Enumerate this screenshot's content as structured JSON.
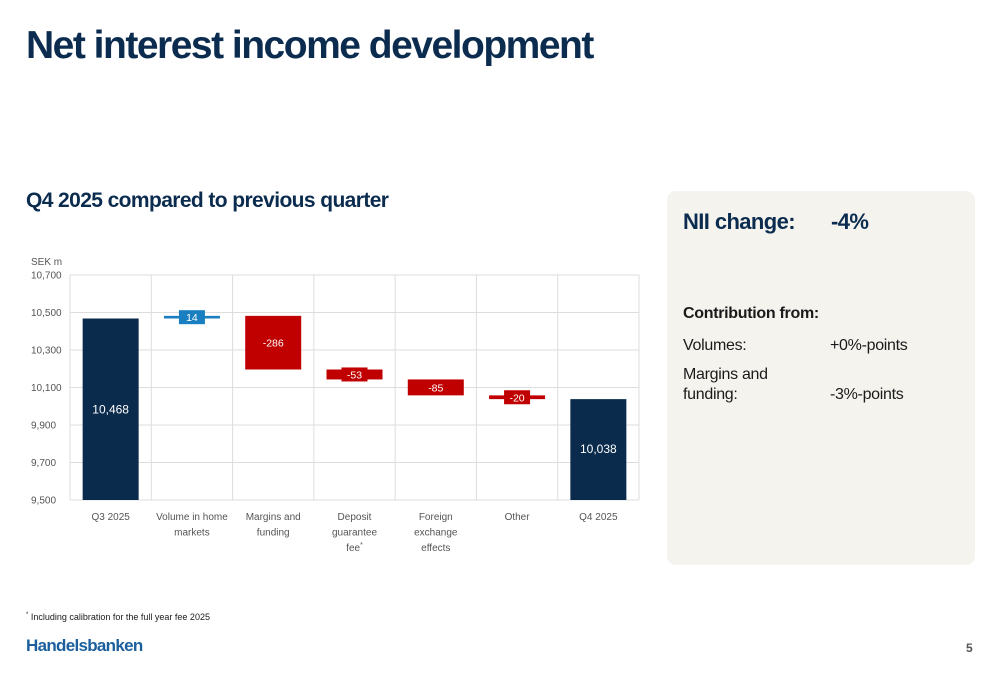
{
  "title": "Net interest income development",
  "subtitle": "Q4 2025 compared to previous quarter",
  "chart_data": {
    "type": "bar",
    "subtype": "waterfall",
    "unit_label": "SEK m",
    "ylim": [
      9500,
      10700
    ],
    "yticks": [
      "9,500",
      "9,700",
      "9,900",
      "10,100",
      "10,300",
      "10,500",
      "10,700"
    ],
    "ytick_values": [
      9500,
      9700,
      9900,
      10100,
      10300,
      10500,
      10700
    ],
    "grid": true,
    "categories": [
      [
        "Q3 2025"
      ],
      [
        "Volume in home",
        "markets"
      ],
      [
        "Margins and",
        "funding"
      ],
      [
        "Deposit",
        "guarantee",
        "fee*"
      ],
      [
        "Foreign",
        "exchange",
        "effects"
      ],
      [
        "Other"
      ],
      [
        "Q4 2025"
      ]
    ],
    "bars": [
      {
        "kind": "total",
        "start": 9500,
        "end": 10468,
        "label": "10,468"
      },
      {
        "kind": "increase",
        "start": 10468,
        "end": 10482,
        "label": "14"
      },
      {
        "kind": "decrease",
        "start": 10482,
        "end": 10196,
        "label": "-286"
      },
      {
        "kind": "decrease",
        "start": 10196,
        "end": 10143,
        "label": "-53"
      },
      {
        "kind": "decrease",
        "start": 10143,
        "end": 10058,
        "label": "-85"
      },
      {
        "kind": "decrease",
        "start": 10058,
        "end": 10038,
        "label": "-20"
      },
      {
        "kind": "total",
        "start": 9500,
        "end": 10038,
        "label": "10,038"
      }
    ],
    "colors": {
      "total": "#0a2b4c",
      "increase": "#1a7fc1",
      "decrease": "#c00000",
      "grid": "#dddddd",
      "tick_text": "#555555"
    }
  },
  "panel": {
    "nii_label": "NII change:",
    "nii_value": "-4%",
    "contrib_heading": "Contribution from:",
    "rows": [
      {
        "label": "Volumes:",
        "value": "+0%-points"
      },
      {
        "label": "Margins and funding:",
        "value": "-3%-points"
      }
    ]
  },
  "footnote": {
    "marker": "*",
    "text": " Including calibration for the full year fee 2025"
  },
  "logo": "Handelsbanken",
  "page_number": "5"
}
